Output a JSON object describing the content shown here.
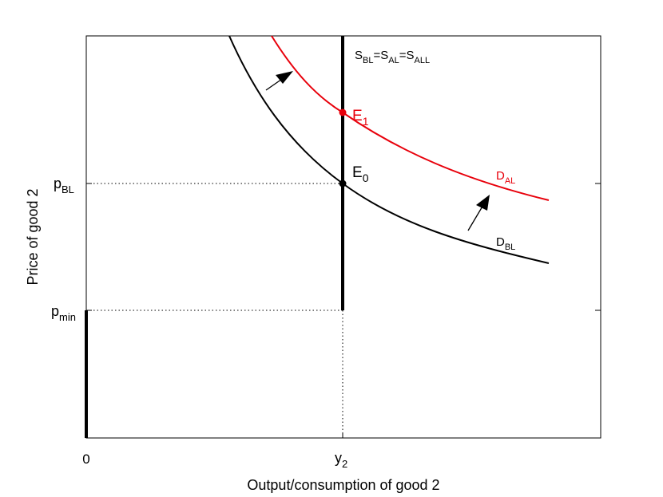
{
  "diagram": {
    "xlabel": "Output/consumption of good 2",
    "ylabel": "Price of good 2",
    "x_ticks": [
      {
        "main": "0",
        "sub": ""
      },
      {
        "main": "y",
        "sub": "2"
      }
    ],
    "y_ticks": [
      {
        "main": "p",
        "sub": "BL"
      },
      {
        "main": "p",
        "sub": "min"
      }
    ],
    "supply_label": {
      "parts": [
        {
          "main": "S",
          "sub": "BL"
        },
        {
          "main": "=S",
          "sub": "AL"
        },
        {
          "main": "=S",
          "sub": "ALL"
        }
      ]
    },
    "demand_original": {
      "main": "D",
      "sub": "BL"
    },
    "demand_shifted": {
      "main": "D",
      "sub": "AL"
    },
    "eq_original": {
      "main": "E",
      "sub": "0"
    },
    "eq_shifted": {
      "main": "E",
      "sub": "1"
    },
    "colors": {
      "original": "#000000",
      "shifted": "#e8000b"
    }
  }
}
